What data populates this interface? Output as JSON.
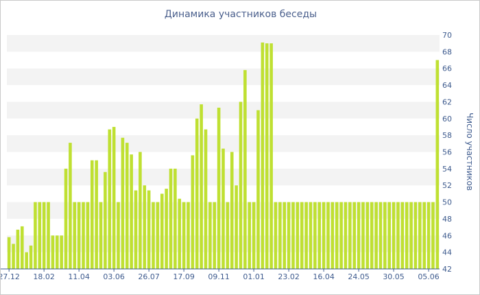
{
  "chart_data": {
    "type": "bar",
    "title": "Динамика участников беседы",
    "ylabel": "Число участников",
    "ylim": [
      42,
      70
    ],
    "yticks": [
      42,
      44,
      46,
      48,
      50,
      52,
      54,
      56,
      58,
      60,
      62,
      64,
      66,
      68,
      70
    ],
    "xtick_labels": [
      "27.12",
      "18.02",
      "11.04",
      "03.06",
      "26.07",
      "17.09",
      "09.11",
      "01.01",
      "23.02",
      "16.04",
      "24.05",
      "30.05",
      "05.06"
    ],
    "xtick_positions": [
      0,
      8,
      16,
      24,
      32,
      40,
      48,
      56,
      64,
      72,
      80,
      88,
      96
    ],
    "values": [
      45.8,
      45,
      46.7,
      47.1,
      44,
      44.8,
      50,
      50,
      50,
      50,
      46,
      46,
      46,
      54,
      57.1,
      50,
      50,
      50,
      50,
      55,
      55,
      50,
      53.6,
      58.7,
      59,
      50,
      57.7,
      57.1,
      55.7,
      51.4,
      56,
      52,
      51.4,
      50,
      50,
      51,
      51.6,
      54,
      54,
      50.4,
      50,
      50,
      55.6,
      60,
      61.7,
      58.7,
      50,
      50,
      61.3,
      56.4,
      50,
      56,
      52,
      62,
      65.8,
      50,
      50,
      61,
      69.1,
      69,
      69,
      50,
      50,
      50,
      50,
      50,
      50,
      50,
      50,
      50,
      50,
      50,
      50,
      50,
      50,
      50,
      50,
      50,
      50,
      50,
      50,
      50,
      50,
      50,
      50,
      50,
      50,
      50,
      50,
      50,
      50,
      50,
      50,
      50,
      50,
      50,
      50,
      50,
      67
    ],
    "grid": "alternating horizontal bands",
    "colors": {
      "bar": "#bfe032",
      "band": "#f3f3f3",
      "text": "#3e5b8e",
      "axis": "#3e5b8e"
    }
  }
}
